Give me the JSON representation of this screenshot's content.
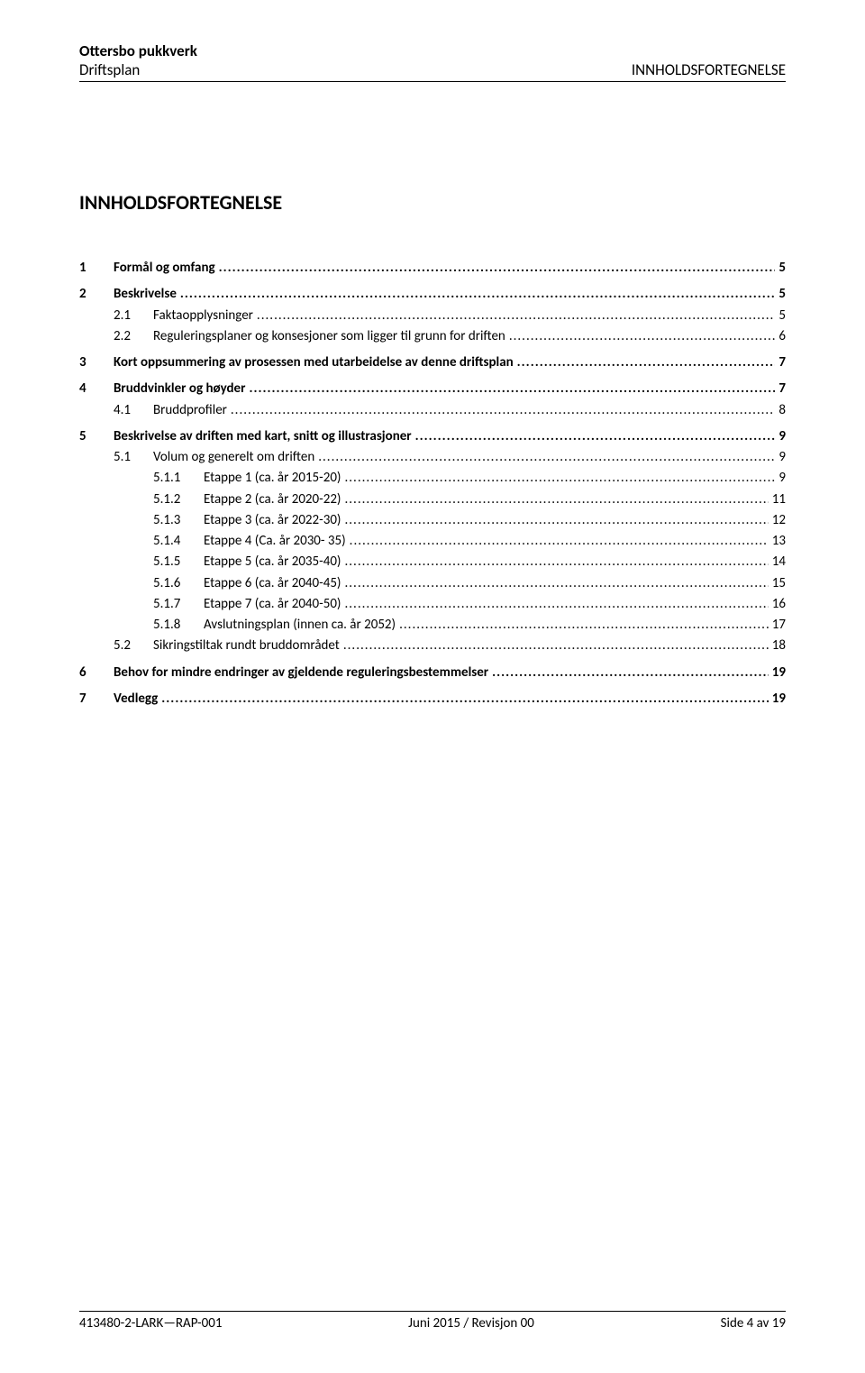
{
  "header": {
    "title": "Ottersbo pukkverk",
    "subtitle_left": "Driftsplan",
    "subtitle_right": "INNHOLDSFORTEGNELSE"
  },
  "main_title": "INNHOLDSFORTEGNELSE",
  "toc": [
    {
      "level": 1,
      "num": "1",
      "label": "Formål og omfang",
      "page": "5"
    },
    {
      "level": 1,
      "num": "2",
      "label": "Beskrivelse",
      "page": "5"
    },
    {
      "level": 2,
      "num": "2.1",
      "label": "Faktaopplysninger",
      "page": "5"
    },
    {
      "level": 2,
      "num": "2.2",
      "label": "Reguleringsplaner og konsesjoner som ligger til grunn for driften",
      "page": "6"
    },
    {
      "level": 1,
      "num": "3",
      "label": "Kort oppsummering av prosessen med utarbeidelse av denne driftsplan",
      "page": "7"
    },
    {
      "level": 1,
      "num": "4",
      "label": "Bruddvinkler og høyder",
      "page": "7"
    },
    {
      "level": 2,
      "num": "4.1",
      "label": "Bruddprofiler",
      "page": "8"
    },
    {
      "level": 1,
      "num": "5",
      "label": "Beskrivelse av driften med kart, snitt og illustrasjoner",
      "page": "9"
    },
    {
      "level": 2,
      "num": "5.1",
      "label": "Volum og generelt om driften",
      "page": "9"
    },
    {
      "level": 3,
      "num": "5.1.1",
      "label": "Etappe 1 (ca. år 2015-20)",
      "page": "9"
    },
    {
      "level": 3,
      "num": "5.1.2",
      "label": "Etappe 2 (ca. år 2020-22)",
      "page": "11"
    },
    {
      "level": 3,
      "num": "5.1.3",
      "label": "Etappe 3 (ca. år 2022-30)",
      "page": "12"
    },
    {
      "level": 3,
      "num": "5.1.4",
      "label": "Etappe 4 (Ca. år 2030- 35)",
      "page": "13"
    },
    {
      "level": 3,
      "num": "5.1.5",
      "label": "Etappe 5 (ca. år 2035-40)",
      "page": "14"
    },
    {
      "level": 3,
      "num": "5.1.6",
      "label": "Etappe 6 (ca. år 2040-45)",
      "page": "15"
    },
    {
      "level": 3,
      "num": "5.1.7",
      "label": "Etappe 7 (ca. år 2040-50)",
      "page": "16"
    },
    {
      "level": 3,
      "num": "5.1.8",
      "label": "Avslutningsplan (innen ca. år 2052)",
      "page": "17"
    },
    {
      "level": 2,
      "num": "5.2",
      "label": "Sikringstiltak rundt bruddområdet",
      "page": "18"
    },
    {
      "level": 1,
      "num": "6",
      "label": "Behov for mindre endringer av gjeldende reguleringsbestemmelser",
      "page": "19"
    },
    {
      "level": 1,
      "num": "7",
      "label": "Vedlegg",
      "page": "19"
    }
  ],
  "footer": {
    "left": "413480-2-LARK—RAP-001",
    "center": "Juni 2015 / Revisjon 00",
    "right": "Side 4 av 19"
  }
}
